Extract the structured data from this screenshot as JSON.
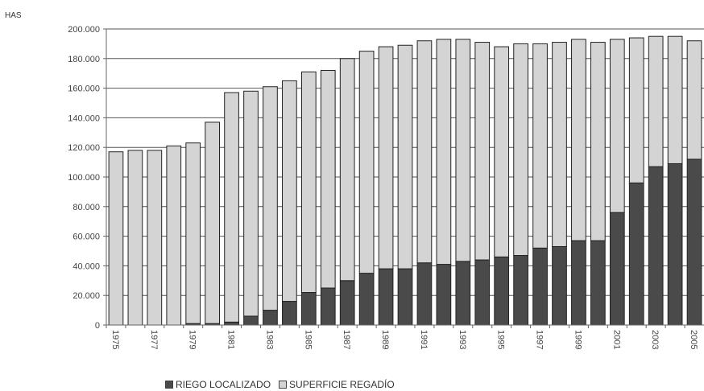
{
  "chart_data": {
    "type": "bar",
    "stacked": true,
    "ylabel": "HAS",
    "ylim": [
      0,
      200000
    ],
    "yticks": [
      "0",
      "20.000",
      "40.000",
      "60.000",
      "80.000",
      "100.000",
      "120.000",
      "140.000",
      "160.000",
      "180.000",
      "200.000"
    ],
    "categories": [
      1975,
      1976,
      1977,
      1978,
      1979,
      1980,
      1981,
      1982,
      1983,
      1984,
      1985,
      1986,
      1987,
      1988,
      1989,
      1990,
      1991,
      1992,
      1993,
      1994,
      1995,
      1996,
      1997,
      1998,
      1999,
      2000,
      2001,
      2002,
      2003,
      2004,
      2005
    ],
    "xtick_labels": [
      "1975",
      "1977",
      "1979",
      "1981",
      "1983",
      "1985",
      "1987",
      "1989",
      "1991",
      "1993",
      "1995",
      "1997",
      "1999",
      "2001",
      "2003",
      "2005"
    ],
    "grid": "horizontal",
    "legend_position": "bottom",
    "series": [
      {
        "name": "RIEGO LOCALIZADO",
        "color": "#4a4a4a",
        "values": [
          0,
          0,
          0,
          0,
          1000,
          1000,
          2000,
          6000,
          10000,
          16000,
          22000,
          25000,
          30000,
          35000,
          38000,
          38000,
          42000,
          41000,
          43000,
          44000,
          46000,
          47000,
          52000,
          53000,
          57000,
          57000,
          76000,
          96000,
          107000,
          109000,
          112000
        ]
      },
      {
        "name": "SUPERFICIE REGADÍO",
        "color": "#d4d4d4",
        "values": [
          117000,
          118000,
          118000,
          121000,
          122000,
          136000,
          155000,
          152000,
          151000,
          149000,
          149000,
          147000,
          150000,
          150000,
          150000,
          151000,
          150000,
          152000,
          150000,
          147000,
          142000,
          143000,
          138000,
          138000,
          136000,
          134000,
          117000,
          98000,
          88000,
          86000,
          80000
        ]
      }
    ]
  }
}
